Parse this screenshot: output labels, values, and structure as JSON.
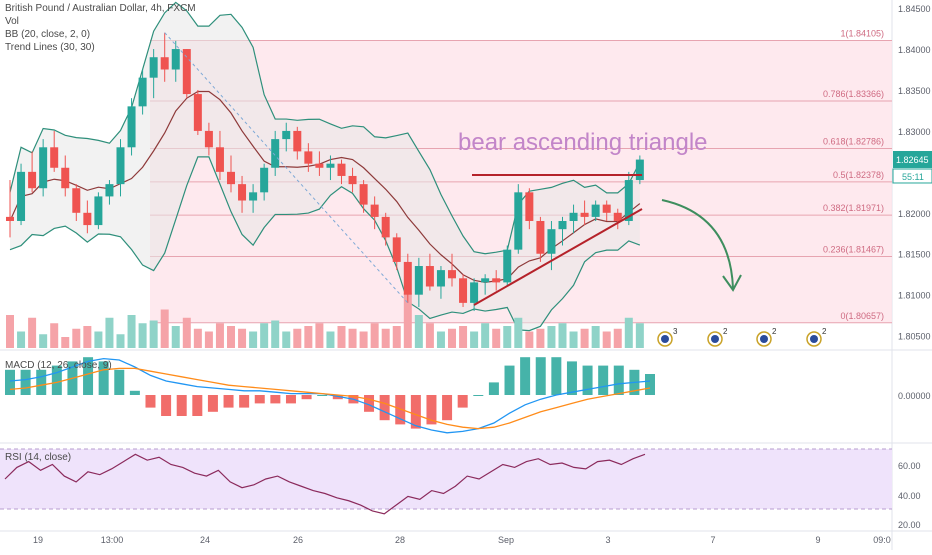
{
  "legend": {
    "symbol": "British Pound / Australian Dollar, 4h, FXCM",
    "vol": "Vol",
    "bb": "BB (20, close, 2, 0)",
    "trend": "Trend Lines (30, 30)",
    "macd": "MACD (12, 26, close, 9)",
    "rsi": "RSI (14, close)"
  },
  "annotation": {
    "text": "bear ascending triangle",
    "color": "#c285c9"
  },
  "colors": {
    "up": "#26a69a",
    "down": "#ef5350",
    "vol_up": "#8fd3c8",
    "vol_down": "#f5a3a8",
    "bb": "#2e8f7b",
    "basis": "#8e3a3a",
    "bb_fill": "#e8e8e8",
    "fib_band": "#fde2e8",
    "fib_line": "#e7a4b0",
    "trend": "#b5222a",
    "arrow": "#3e8e5e",
    "macd": "#2196f3",
    "signal": "#ff8c1a",
    "rsi": "#8b2a5c",
    "rsi_band": "#efe3fb",
    "axis_text": "#5d606b"
  },
  "price_axis": {
    "ticks": [
      "1.84500",
      "1.84000",
      "1.83500",
      "1.83000",
      "1.82500",
      "1.82000",
      "1.81500",
      "1.81000",
      "1.80500"
    ],
    "last_price": "1.82645",
    "countdown": "55:11"
  },
  "fib_levels": [
    {
      "label": "1(1.84105)",
      "value": 1.84105
    },
    {
      "label": "0.786(1.83366)",
      "value": 1.83366
    },
    {
      "label": "0.618(1.82786)",
      "value": 1.82786
    },
    {
      "label": "0.5(1.82378)",
      "value": 1.82378
    },
    {
      "label": "0.382(1.81971)",
      "value": 1.81971
    },
    {
      "label": "0.236(1.81467)",
      "value": 1.81467
    },
    {
      "label": "0(1.80657)",
      "value": 1.80657
    }
  ],
  "macd_axis": {
    "tick": "0.00000"
  },
  "rsi_axis": {
    "ticks": [
      "60.00",
      "40.00",
      "20.00"
    ]
  },
  "time_axis": {
    "labels": [
      "19",
      "13:00",
      "24",
      "26",
      "28",
      "Sep",
      "3",
      "7",
      "9",
      "09:0"
    ]
  },
  "events": [
    {
      "count": "3"
    },
    {
      "count": "2"
    },
    {
      "count": "2"
    },
    {
      "count": "2"
    }
  ],
  "chart_data": {
    "type": "candlestick",
    "title": "British Pound / Australian Dollar, 4h, FXCM",
    "ylim": [
      1.803,
      1.8455
    ],
    "candles": [
      [
        1.8195,
        1.824,
        1.817,
        1.819
      ],
      [
        1.819,
        1.826,
        1.8185,
        1.825
      ],
      [
        1.825,
        1.8275,
        1.8225,
        1.823
      ],
      [
        1.823,
        1.829,
        1.822,
        1.828
      ],
      [
        1.828,
        1.83,
        1.825,
        1.8255
      ],
      [
        1.8255,
        1.827,
        1.822,
        1.823
      ],
      [
        1.823,
        1.8235,
        1.819,
        1.82
      ],
      [
        1.82,
        1.8215,
        1.8175,
        1.8185
      ],
      [
        1.8185,
        1.8225,
        1.818,
        1.822
      ],
      [
        1.822,
        1.824,
        1.821,
        1.8235
      ],
      [
        1.8235,
        1.829,
        1.822,
        1.828
      ],
      [
        1.828,
        1.834,
        1.827,
        1.833
      ],
      [
        1.833,
        1.8375,
        1.832,
        1.8365
      ],
      [
        1.8365,
        1.84,
        1.834,
        1.839
      ],
      [
        1.839,
        1.842,
        1.836,
        1.8375
      ],
      [
        1.8375,
        1.841,
        1.836,
        1.84
      ],
      [
        1.84,
        1.84,
        1.834,
        1.8345
      ],
      [
        1.8345,
        1.835,
        1.8295,
        1.83
      ],
      [
        1.83,
        1.831,
        1.827,
        1.828
      ],
      [
        1.828,
        1.83,
        1.824,
        1.825
      ],
      [
        1.825,
        1.827,
        1.8225,
        1.8235
      ],
      [
        1.8235,
        1.8245,
        1.82,
        1.8215
      ],
      [
        1.8215,
        1.8235,
        1.82,
        1.8225
      ],
      [
        1.8225,
        1.826,
        1.8215,
        1.8255
      ],
      [
        1.8255,
        1.83,
        1.8245,
        1.829
      ],
      [
        1.829,
        1.831,
        1.8275,
        1.83
      ],
      [
        1.83,
        1.8305,
        1.8265,
        1.8275
      ],
      [
        1.8275,
        1.8285,
        1.825,
        1.826
      ],
      [
        1.826,
        1.8275,
        1.8245,
        1.8255
      ],
      [
        1.8255,
        1.827,
        1.824,
        1.826
      ],
      [
        1.826,
        1.8265,
        1.8235,
        1.8245
      ],
      [
        1.8245,
        1.8255,
        1.8225,
        1.8235
      ],
      [
        1.8235,
        1.824,
        1.82,
        1.821
      ],
      [
        1.821,
        1.822,
        1.818,
        1.8195
      ],
      [
        1.8195,
        1.82,
        1.816,
        1.817
      ],
      [
        1.817,
        1.8175,
        1.813,
        1.814
      ],
      [
        1.814,
        1.815,
        1.809,
        1.81
      ],
      [
        1.81,
        1.8145,
        1.8085,
        1.8135
      ],
      [
        1.8135,
        1.815,
        1.8105,
        1.811
      ],
      [
        1.811,
        1.8135,
        1.8095,
        1.813
      ],
      [
        1.813,
        1.815,
        1.811,
        1.812
      ],
      [
        1.812,
        1.8125,
        1.8085,
        1.809
      ],
      [
        1.809,
        1.812,
        1.808,
        1.8115
      ],
      [
        1.8115,
        1.8125,
        1.81,
        1.812
      ],
      [
        1.812,
        1.813,
        1.8105,
        1.8115
      ],
      [
        1.8115,
        1.816,
        1.811,
        1.8155
      ],
      [
        1.8155,
        1.8235,
        1.815,
        1.8225
      ],
      [
        1.8225,
        1.823,
        1.818,
        1.819
      ],
      [
        1.819,
        1.8195,
        1.814,
        1.815
      ],
      [
        1.815,
        1.819,
        1.813,
        1.818
      ],
      [
        1.818,
        1.8195,
        1.816,
        1.819
      ],
      [
        1.819,
        1.821,
        1.8175,
        1.82
      ],
      [
        1.82,
        1.8215,
        1.8185,
        1.8195
      ],
      [
        1.8195,
        1.8215,
        1.819,
        1.821
      ],
      [
        1.821,
        1.8215,
        1.819,
        1.82
      ],
      [
        1.82,
        1.8205,
        1.818,
        1.819
      ],
      [
        1.819,
        1.825,
        1.8185,
        1.824
      ],
      [
        1.824,
        1.827,
        1.8235,
        1.8265
      ]
    ],
    "volume": [
      60,
      30,
      55,
      25,
      45,
      20,
      35,
      40,
      30,
      55,
      25,
      60,
      45,
      50,
      70,
      40,
      55,
      35,
      30,
      45,
      40,
      35,
      30,
      45,
      50,
      30,
      35,
      40,
      45,
      30,
      40,
      35,
      30,
      45,
      35,
      40,
      100,
      60,
      45,
      30,
      35,
      40,
      30,
      45,
      35,
      40,
      55,
      30,
      35,
      40,
      45,
      30,
      35,
      40,
      30,
      35,
      55,
      45
    ],
    "macd": [
      0.001,
      0.0011,
      0.0013,
      0.0016,
      0.002,
      0.0024,
      0.0026,
      0.0025,
      0.002,
      0.0014,
      0.001,
      0.0008,
      0.0006,
      0.0005,
      0.0004,
      0.0003,
      0.0003,
      0.0002,
      0.0001,
      0.0001,
      0.0001,
      -0.0001,
      -0.0003,
      -0.0007,
      -0.0012,
      -0.0017,
      -0.0022,
      -0.0025,
      -0.0027,
      -0.0026,
      -0.0024,
      -0.002,
      -0.0013,
      -0.0007,
      -0.0003,
      0.0,
      0.0002,
      0.0004,
      0.0006,
      0.0008,
      0.0009,
      0.001
    ],
    "signal": [
      0.0004,
      0.0005,
      0.0007,
      0.0009,
      0.0012,
      0.0015,
      0.0018,
      0.0019,
      0.0019,
      0.0017,
      0.0015,
      0.0013,
      0.0011,
      0.0009,
      0.0007,
      0.0006,
      0.0005,
      0.0004,
      0.0003,
      0.0002,
      0.0001,
      0.0,
      -0.0001,
      -0.0003,
      -0.0006,
      -0.001,
      -0.0014,
      -0.0018,
      -0.0021,
      -0.0023,
      -0.0024,
      -0.0023,
      -0.002,
      -0.0016,
      -0.0012,
      -0.0009,
      -0.0006,
      -0.0003,
      -0.0001,
      0.0001,
      0.0003,
      0.0005
    ],
    "rsi": [
      50,
      58,
      62,
      56,
      60,
      52,
      48,
      55,
      53,
      57,
      62,
      67,
      63,
      65,
      60,
      58,
      54,
      52,
      56,
      48,
      44,
      46,
      50,
      52,
      48,
      45,
      42,
      40,
      37,
      35,
      32,
      28,
      26,
      32,
      38,
      36,
      42,
      40,
      45,
      52,
      50,
      55,
      60,
      58,
      62,
      64,
      60,
      61,
      58,
      57,
      62,
      63,
      60,
      64,
      67
    ]
  }
}
